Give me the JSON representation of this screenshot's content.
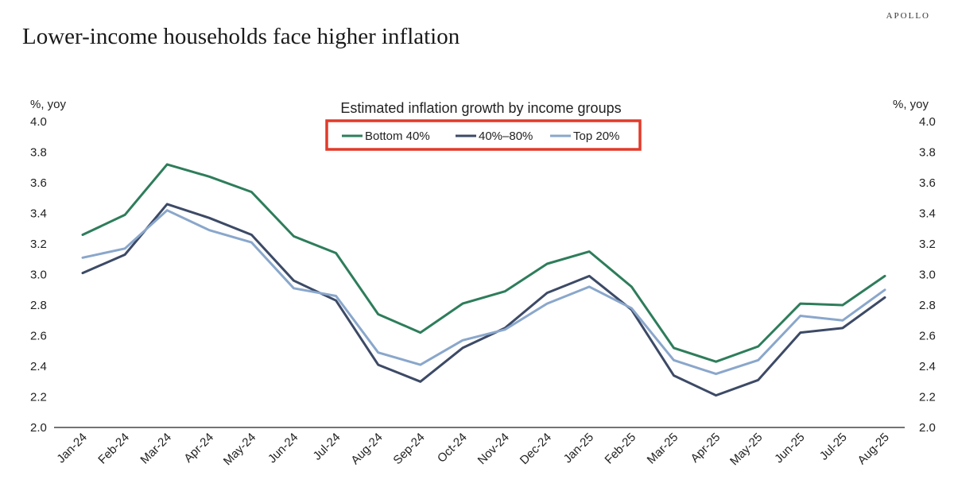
{
  "header": {
    "brand": "APOLLO",
    "title": "Lower-income households face higher inflation"
  },
  "chart_data": {
    "type": "line",
    "title": "Estimated inflation growth by income groups",
    "y_unit_left": "%, yoy",
    "y_unit_right": "%, yoy",
    "ylim": [
      2.0,
      4.0
    ],
    "yticks": [
      "4.0",
      "3.8",
      "3.6",
      "3.4",
      "3.2",
      "3.0",
      "2.8",
      "2.6",
      "2.4",
      "2.2",
      "2.0"
    ],
    "grid": false,
    "legend_position": "top-center",
    "legend_highlight_color": "#e23a2a",
    "categories": [
      "Jan-24",
      "Feb-24",
      "Mar-24",
      "Apr-24",
      "May-24",
      "Jun-24",
      "Jul-24",
      "Aug-24",
      "Sep-24",
      "Oct-24",
      "Nov-24",
      "Dec-24",
      "Jan-25",
      "Feb-25",
      "Mar-25",
      "Apr-25",
      "May-25",
      "Jun-25",
      "Jul-25",
      "Aug-25"
    ],
    "series": [
      {
        "name": "Bottom 40%",
        "color": "#2e7d5b",
        "values": [
          3.26,
          3.39,
          3.72,
          3.64,
          3.54,
          3.25,
          3.14,
          2.74,
          2.62,
          2.81,
          2.89,
          3.07,
          3.15,
          2.92,
          2.52,
          2.43,
          2.53,
          2.81,
          2.8,
          2.99
        ]
      },
      {
        "name": "40%–80%",
        "color": "#3c4a66",
        "values": [
          3.01,
          3.13,
          3.46,
          3.37,
          3.26,
          2.96,
          2.83,
          2.41,
          2.3,
          2.52,
          2.65,
          2.88,
          2.99,
          2.77,
          2.34,
          2.21,
          2.31,
          2.62,
          2.65,
          2.85
        ]
      },
      {
        "name": "Top 20%",
        "color": "#8aa7cb",
        "values": [
          3.11,
          3.17,
          3.42,
          3.29,
          3.21,
          2.91,
          2.86,
          2.49,
          2.41,
          2.57,
          2.64,
          2.81,
          2.92,
          2.78,
          2.44,
          2.35,
          2.44,
          2.73,
          2.7,
          2.9
        ]
      }
    ]
  }
}
